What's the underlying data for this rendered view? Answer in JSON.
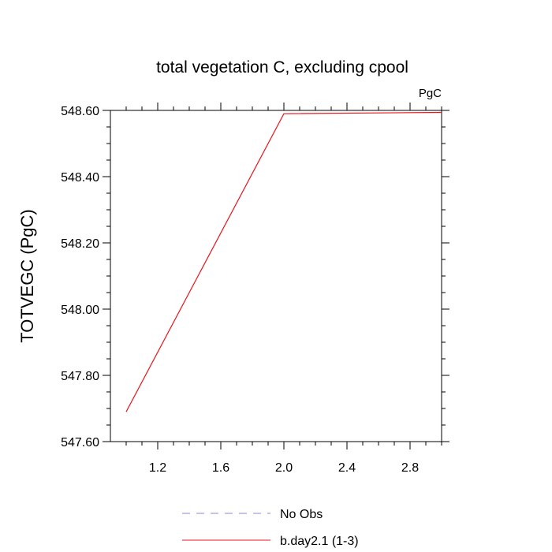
{
  "chart_data": {
    "type": "line",
    "title": "total vegetation C, excluding cpool",
    "units_label": "PgC",
    "ylabel": "TOTVEGC  (PgC)",
    "xlabel": "",
    "xlim": [
      0.9,
      3.0
    ],
    "ylim": [
      547.6,
      548.6
    ],
    "x_ticks": [
      1.2,
      1.6,
      2.0,
      2.4,
      2.8
    ],
    "x_tick_labels": [
      "1.2",
      "1.6",
      "2.0",
      "2.4",
      "2.8"
    ],
    "y_ticks": [
      547.6,
      547.8,
      548.0,
      548.2,
      548.4,
      548.6
    ],
    "y_tick_labels": [
      "547.60",
      "547.80",
      "548.00",
      "548.20",
      "548.40",
      "548.60"
    ],
    "grid": false,
    "legend_position": "bottom",
    "series": [
      {
        "name": "b.day2.1 (1-3)",
        "color": "#e8141b",
        "style": "solid",
        "x": [
          1,
          2,
          3
        ],
        "y": [
          547.69,
          548.59,
          548.594
        ]
      }
    ],
    "legend": [
      {
        "label": "No Obs",
        "color": "#8a8ad6",
        "style": "dashed"
      },
      {
        "label": "b.day2.1 (1-3)",
        "color": "#e8141b",
        "style": "solid"
      }
    ]
  }
}
